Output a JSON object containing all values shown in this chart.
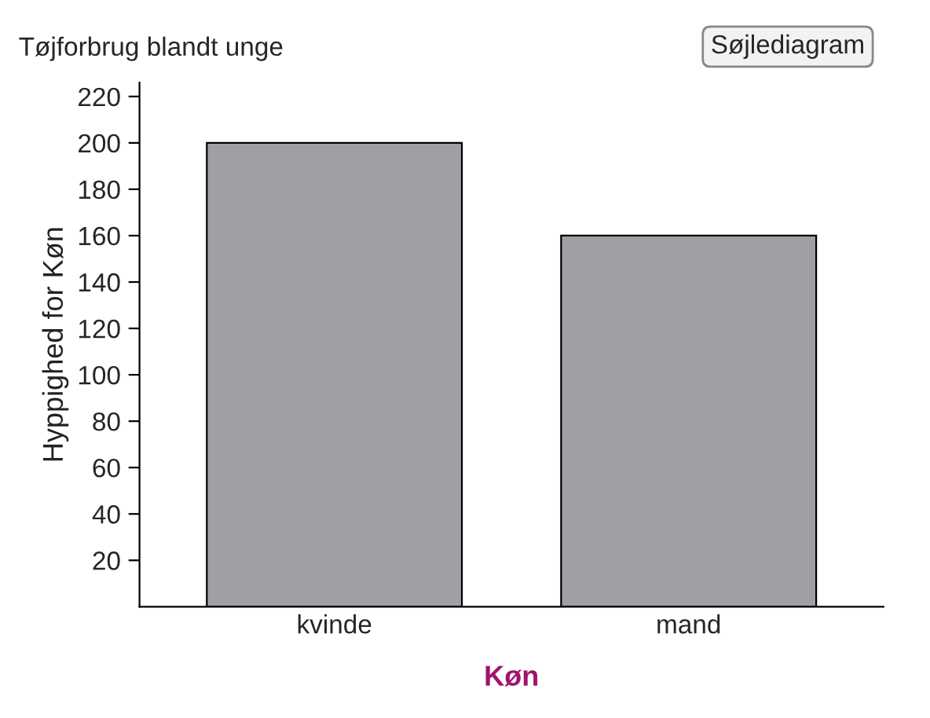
{
  "chart_data": {
    "type": "bar",
    "title": "Tøjforbrug blandt unge",
    "xlabel": "Køn",
    "ylabel": "Hyppighed for Køn",
    "categories": [
      "kvinde",
      "mand"
    ],
    "values": [
      200,
      160
    ],
    "color": "#a09fa4",
    "ylim": [
      0,
      226
    ],
    "yticks": [
      20,
      40,
      60,
      80,
      100,
      120,
      140,
      160,
      180,
      200,
      220
    ],
    "grid": false,
    "annotations": [
      "Søjlediagram"
    ]
  }
}
